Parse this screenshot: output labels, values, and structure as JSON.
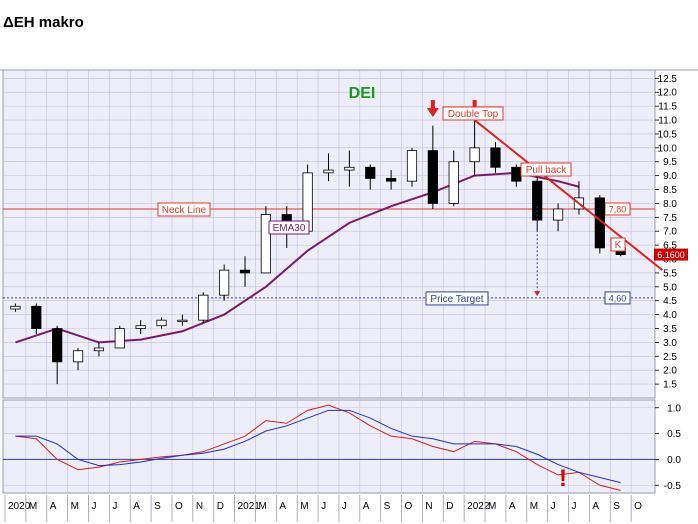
{
  "header": {
    "title": "ΔΕΗ makro"
  },
  "chart_data": [
    {
      "type": "candlestick",
      "name": "price",
      "ticker_label": "DEI",
      "y_ticks": [
        1.5,
        2.0,
        2.5,
        3.0,
        3.5,
        4.0,
        4.5,
        5.0,
        5.5,
        6.0,
        6.5,
        7.0,
        7.5,
        8.0,
        8.5,
        9.0,
        9.5,
        10.0,
        10.5,
        11.0,
        11.5,
        12.0,
        12.5
      ],
      "ylim": [
        1.0,
        12.8
      ],
      "last_price_label": "6.1600",
      "horizontal_levels": [
        {
          "label": "Neck Line",
          "value": 7.8,
          "value_label": "7,80",
          "style": "solid",
          "color": "#e03a2a"
        },
        {
          "label": "Price Target",
          "value": 4.6,
          "value_label": "4,60",
          "style": "dotted",
          "color": "#3040a0"
        }
      ],
      "annotations": [
        "Double Top",
        "Pull back",
        "EMA30",
        "K"
      ],
      "trendline_points": [
        {
          "x": "2021-11",
          "y": 11.0
        },
        {
          "x": "2022-08",
          "y": 5.6
        }
      ],
      "arrow_dates": [
        "2021-09",
        "2021-11"
      ],
      "target_arrow": {
        "x": "2022-02",
        "from": 7.9,
        "to": 4.7
      },
      "monthly_ohlc": [
        {
          "m": "2020-01",
          "o": 4.2,
          "h": 4.4,
          "l": 4.1,
          "c": 4.3
        },
        {
          "m": "2020-02",
          "o": 4.3,
          "h": 4.4,
          "l": 3.3,
          "c": 3.5
        },
        {
          "m": "2020-03",
          "o": 3.5,
          "h": 3.6,
          "l": 1.5,
          "c": 2.3
        },
        {
          "m": "2020-04",
          "o": 2.3,
          "h": 2.8,
          "l": 2.0,
          "c": 2.7
        },
        {
          "m": "2020-05",
          "o": 2.7,
          "h": 3.0,
          "l": 2.5,
          "c": 2.8
        },
        {
          "m": "2020-06",
          "o": 2.8,
          "h": 3.6,
          "l": 2.8,
          "c": 3.5
        },
        {
          "m": "2020-07",
          "o": 3.5,
          "h": 3.8,
          "l": 3.3,
          "c": 3.6
        },
        {
          "m": "2020-08",
          "o": 3.6,
          "h": 3.9,
          "l": 3.5,
          "c": 3.8
        },
        {
          "m": "2020-09",
          "o": 3.8,
          "h": 4.0,
          "l": 3.6,
          "c": 3.8
        },
        {
          "m": "2020-10",
          "o": 3.8,
          "h": 4.8,
          "l": 3.7,
          "c": 4.7
        },
        {
          "m": "2020-11",
          "o": 4.7,
          "h": 5.8,
          "l": 4.5,
          "c": 5.6
        },
        {
          "m": "2020-12",
          "o": 5.6,
          "h": 6.1,
          "l": 5.0,
          "c": 5.5
        },
        {
          "m": "2021-01",
          "o": 5.5,
          "h": 7.9,
          "l": 5.5,
          "c": 7.6
        },
        {
          "m": "2021-02",
          "o": 7.6,
          "h": 7.9,
          "l": 6.4,
          "c": 7.0
        },
        {
          "m": "2021-03",
          "o": 7.0,
          "h": 9.4,
          "l": 6.9,
          "c": 9.1
        },
        {
          "m": "2021-04",
          "o": 9.1,
          "h": 9.8,
          "l": 8.8,
          "c": 9.2
        },
        {
          "m": "2021-05",
          "o": 9.2,
          "h": 9.9,
          "l": 8.6,
          "c": 9.3
        },
        {
          "m": "2021-06",
          "o": 9.3,
          "h": 9.4,
          "l": 8.5,
          "c": 8.9
        },
        {
          "m": "2021-07",
          "o": 8.9,
          "h": 9.2,
          "l": 8.5,
          "c": 8.8
        },
        {
          "m": "2021-08",
          "o": 8.8,
          "h": 10.0,
          "l": 8.6,
          "c": 9.9
        },
        {
          "m": "2021-09",
          "o": 9.9,
          "h": 10.8,
          "l": 7.8,
          "c": 8.0
        },
        {
          "m": "2021-10",
          "o": 8.0,
          "h": 9.9,
          "l": 7.9,
          "c": 9.5
        },
        {
          "m": "2021-11",
          "o": 9.5,
          "h": 11.0,
          "l": 9.0,
          "c": 10.0
        },
        {
          "m": "2021-12",
          "o": 10.0,
          "h": 10.2,
          "l": 9.1,
          "c": 9.3
        },
        {
          "m": "2022-01",
          "o": 9.3,
          "h": 9.4,
          "l": 8.6,
          "c": 8.8
        },
        {
          "m": "2022-02",
          "o": 8.8,
          "h": 9.0,
          "l": 7.0,
          "c": 7.4
        },
        {
          "m": "2022-03",
          "o": 7.4,
          "h": 8.0,
          "l": 7.0,
          "c": 7.8
        },
        {
          "m": "2022-04",
          "o": 7.8,
          "h": 8.8,
          "l": 7.6,
          "c": 8.2
        },
        {
          "m": "2022-05",
          "o": 8.2,
          "h": 8.3,
          "l": 6.2,
          "c": 6.4
        },
        {
          "m": "2022-06",
          "o": 6.4,
          "h": 6.5,
          "l": 6.1,
          "c": 6.16
        }
      ],
      "ema30": [
        {
          "m": "2020-01",
          "v": 3.0
        },
        {
          "m": "2020-03",
          "v": 3.5
        },
        {
          "m": "2020-05",
          "v": 3.0
        },
        {
          "m": "2020-07",
          "v": 3.1
        },
        {
          "m": "2020-09",
          "v": 3.4
        },
        {
          "m": "2020-11",
          "v": 4.0
        },
        {
          "m": "2021-01",
          "v": 5.0
        },
        {
          "m": "2021-03",
          "v": 6.3
        },
        {
          "m": "2021-05",
          "v": 7.3
        },
        {
          "m": "2021-07",
          "v": 7.9
        },
        {
          "m": "2021-09",
          "v": 8.4
        },
        {
          "m": "2021-11",
          "v": 9.0
        },
        {
          "m": "2022-01",
          "v": 9.1
        },
        {
          "m": "2022-03",
          "v": 8.8
        },
        {
          "m": "2022-04",
          "v": 8.6
        }
      ]
    },
    {
      "type": "line",
      "name": "oscillator",
      "y_ticks": [
        -0.5,
        0.0,
        0.5,
        1.0
      ],
      "ylim": [
        -0.65,
        1.15
      ],
      "zero_line": 0.0,
      "annotation": "!",
      "series": [
        {
          "color": "#d02020",
          "values": [
            {
              "m": "2020-01",
              "v": 0.45
            },
            {
              "m": "2020-02",
              "v": 0.4
            },
            {
              "m": "2020-03",
              "v": 0.0
            },
            {
              "m": "2020-04",
              "v": -0.2
            },
            {
              "m": "2020-05",
              "v": -0.15
            },
            {
              "m": "2020-06",
              "v": -0.05
            },
            {
              "m": "2020-07",
              "v": 0.0
            },
            {
              "m": "2020-08",
              "v": 0.05
            },
            {
              "m": "2020-09",
              "v": 0.08
            },
            {
              "m": "2020-10",
              "v": 0.15
            },
            {
              "m": "2020-11",
              "v": 0.3
            },
            {
              "m": "2020-12",
              "v": 0.45
            },
            {
              "m": "2021-01",
              "v": 0.75
            },
            {
              "m": "2021-02",
              "v": 0.7
            },
            {
              "m": "2021-03",
              "v": 0.95
            },
            {
              "m": "2021-04",
              "v": 1.05
            },
            {
              "m": "2021-05",
              "v": 0.9
            },
            {
              "m": "2021-06",
              "v": 0.65
            },
            {
              "m": "2021-07",
              "v": 0.45
            },
            {
              "m": "2021-08",
              "v": 0.4
            },
            {
              "m": "2021-09",
              "v": 0.25
            },
            {
              "m": "2021-10",
              "v": 0.15
            },
            {
              "m": "2021-11",
              "v": 0.35
            },
            {
              "m": "2021-12",
              "v": 0.3
            },
            {
              "m": "2022-01",
              "v": 0.15
            },
            {
              "m": "2022-02",
              "v": -0.1
            },
            {
              "m": "2022-03",
              "v": -0.3
            },
            {
              "m": "2022-04",
              "v": -0.25
            },
            {
              "m": "2022-05",
              "v": -0.5
            },
            {
              "m": "2022-06",
              "v": -0.6
            }
          ]
        },
        {
          "color": "#2030c0",
          "values": [
            {
              "m": "2020-01",
              "v": 0.45
            },
            {
              "m": "2020-02",
              "v": 0.45
            },
            {
              "m": "2020-03",
              "v": 0.3
            },
            {
              "m": "2020-04",
              "v": 0.0
            },
            {
              "m": "2020-05",
              "v": -0.12
            },
            {
              "m": "2020-06",
              "v": -0.1
            },
            {
              "m": "2020-07",
              "v": -0.05
            },
            {
              "m": "2020-08",
              "v": 0.02
            },
            {
              "m": "2020-09",
              "v": 0.08
            },
            {
              "m": "2020-10",
              "v": 0.12
            },
            {
              "m": "2020-11",
              "v": 0.2
            },
            {
              "m": "2020-12",
              "v": 0.35
            },
            {
              "m": "2021-01",
              "v": 0.55
            },
            {
              "m": "2021-02",
              "v": 0.65
            },
            {
              "m": "2021-03",
              "v": 0.8
            },
            {
              "m": "2021-04",
              "v": 0.95
            },
            {
              "m": "2021-05",
              "v": 0.95
            },
            {
              "m": "2021-06",
              "v": 0.8
            },
            {
              "m": "2021-07",
              "v": 0.6
            },
            {
              "m": "2021-08",
              "v": 0.45
            },
            {
              "m": "2021-09",
              "v": 0.4
            },
            {
              "m": "2021-10",
              "v": 0.3
            },
            {
              "m": "2021-11",
              "v": 0.3
            },
            {
              "m": "2021-12",
              "v": 0.3
            },
            {
              "m": "2022-01",
              "v": 0.25
            },
            {
              "m": "2022-02",
              "v": 0.1
            },
            {
              "m": "2022-03",
              "v": -0.1
            },
            {
              "m": "2022-04",
              "v": -0.25
            },
            {
              "m": "2022-05",
              "v": -0.35
            },
            {
              "m": "2022-06",
              "v": -0.45
            }
          ]
        }
      ]
    }
  ],
  "x_axis": {
    "labels": [
      "2020",
      "M",
      "A",
      "M",
      "J",
      "J",
      "A",
      "S",
      "O",
      "N",
      "D",
      "2021",
      "M",
      "A",
      "M",
      "J",
      "J",
      "A",
      "S",
      "O",
      "N",
      "D",
      "2022",
      "M",
      "A",
      "M",
      "J",
      "J",
      "A",
      "S",
      "O"
    ]
  },
  "colors": {
    "plot_bg": "#eeeef8",
    "grid": "#c0c0d8",
    "candle_up": "#ffffff",
    "candle_down": "#000000",
    "ema": "#7a1a6e",
    "neck": "#e03a2a",
    "target": "#3040a0",
    "trend": "#e02020",
    "ticker": "#1a9a1a",
    "arrow": "#e02020"
  }
}
